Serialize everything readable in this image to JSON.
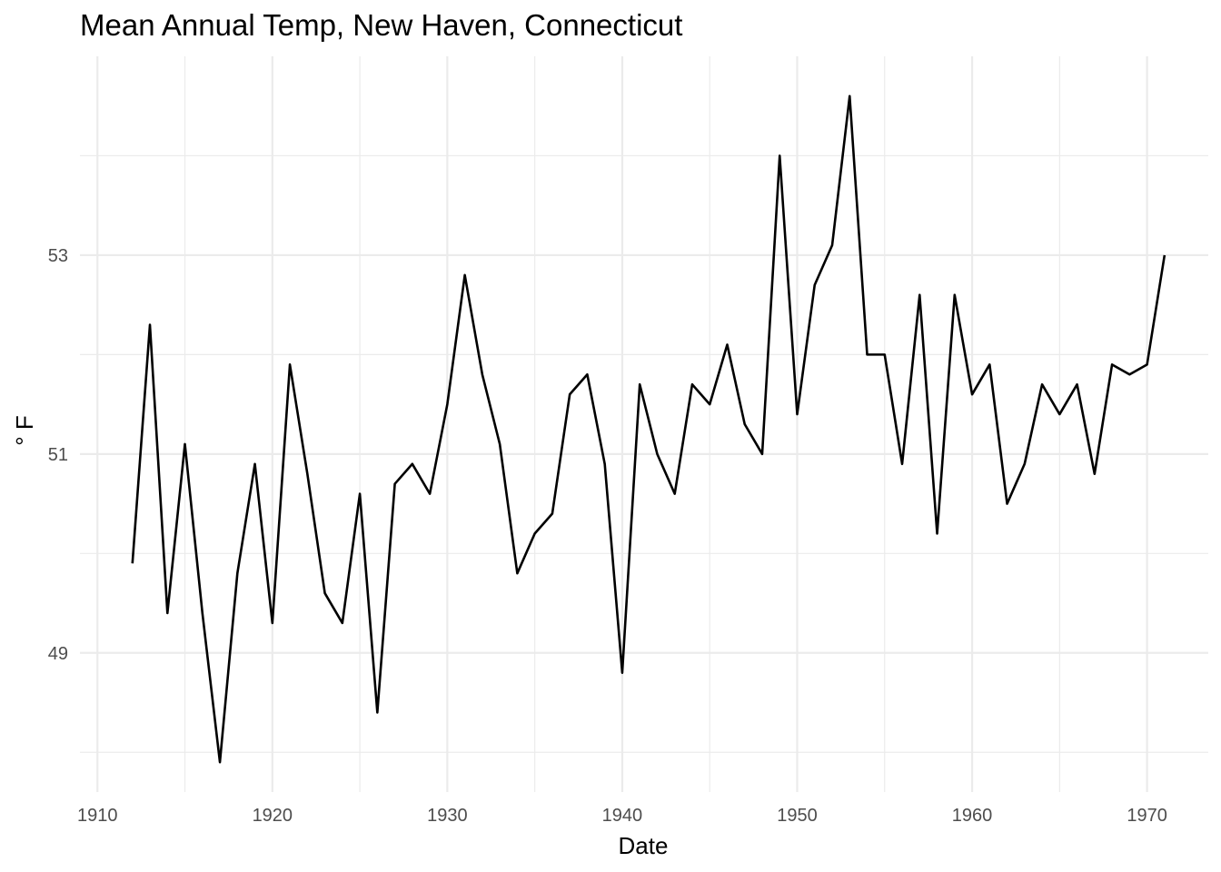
{
  "chart_data": {
    "type": "line",
    "title": "Mean Annual Temp, New Haven, Connecticut",
    "xlabel": "Date",
    "ylabel": "° F",
    "xlim": [
      1909,
      1973.5
    ],
    "ylim": [
      47.6,
      55
    ],
    "x_ticks": [
      1910,
      1920,
      1930,
      1940,
      1950,
      1960,
      1970
    ],
    "x_tick_labels": [
      "1910",
      "1920",
      "1930",
      "1940",
      "1950",
      "1960",
      "1970"
    ],
    "y_ticks": [
      49,
      51,
      53
    ],
    "y_tick_labels": [
      "49",
      "51",
      "53"
    ],
    "grid": true,
    "x": [
      1912,
      1913,
      1914,
      1915,
      1916,
      1917,
      1918,
      1919,
      1920,
      1921,
      1922,
      1923,
      1924,
      1925,
      1926,
      1927,
      1928,
      1929,
      1930,
      1931,
      1932,
      1933,
      1934,
      1935,
      1936,
      1937,
      1938,
      1939,
      1940,
      1941,
      1942,
      1943,
      1944,
      1945,
      1946,
      1947,
      1948,
      1949,
      1950,
      1951,
      1952,
      1953,
      1954,
      1955,
      1956,
      1957,
      1958,
      1959,
      1960,
      1961,
      1962,
      1963,
      1964,
      1965,
      1966,
      1967,
      1968,
      1969,
      1970,
      1971
    ],
    "values": [
      49.9,
      52.3,
      49.4,
      51.1,
      49.4,
      47.9,
      49.8,
      50.9,
      49.3,
      51.9,
      50.8,
      49.6,
      49.3,
      50.6,
      48.4,
      50.7,
      50.9,
      50.6,
      51.5,
      52.8,
      51.8,
      51.1,
      49.8,
      50.2,
      50.4,
      51.6,
      51.8,
      50.9,
      48.8,
      51.7,
      51.0,
      50.6,
      51.7,
      51.5,
      52.1,
      51.3,
      51.0,
      54.0,
      51.4,
      52.7,
      53.1,
      54.6,
      52.0,
      52.0,
      50.9,
      52.6,
      50.2,
      52.6,
      51.6,
      51.9,
      50.5,
      50.9,
      51.7,
      51.4,
      51.7,
      50.8,
      51.9,
      51.8,
      51.9,
      53.0
    ]
  }
}
